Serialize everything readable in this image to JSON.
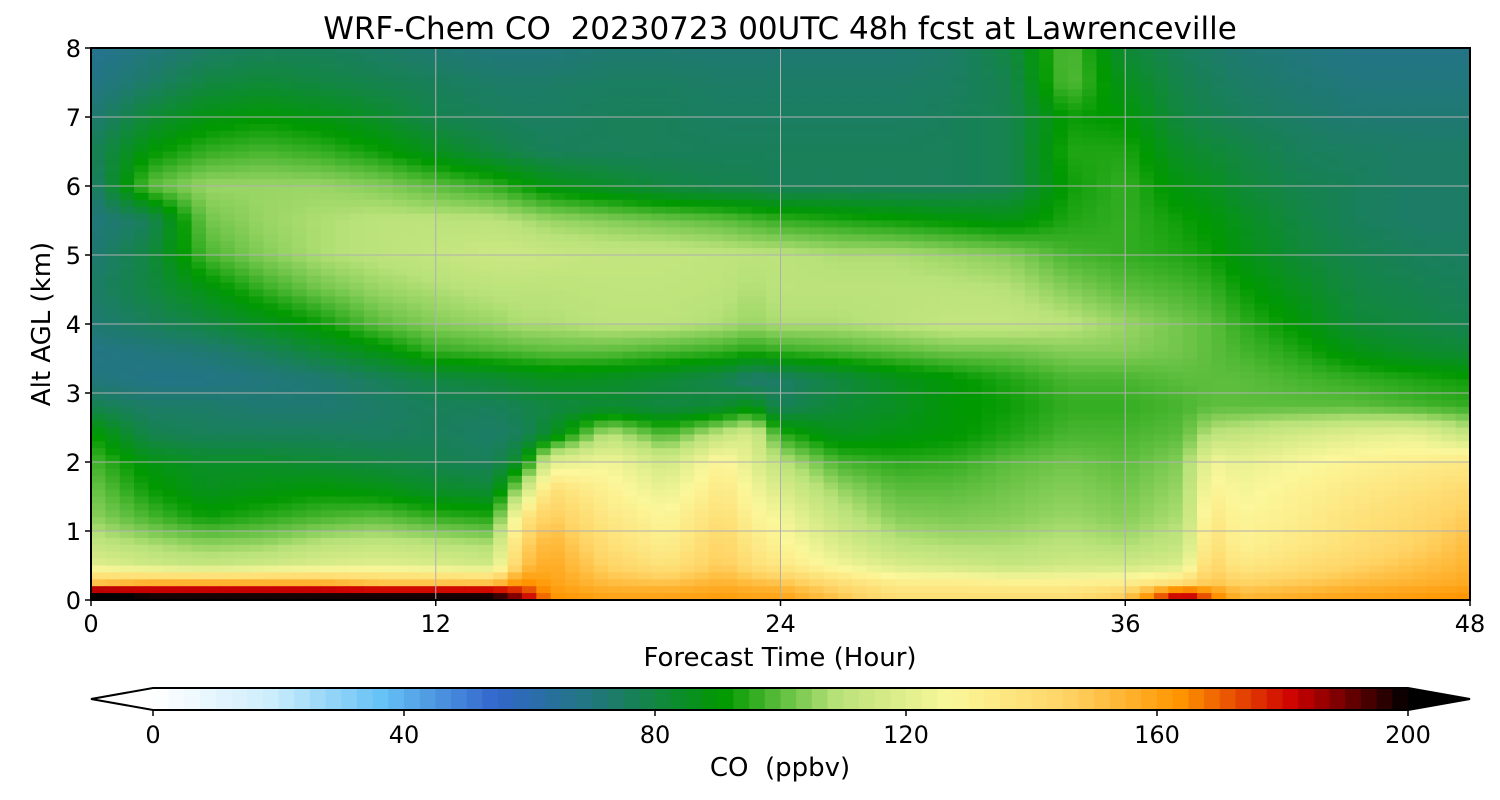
{
  "chart_data": {
    "type": "heatmap",
    "title": "WRF-Chem CO  20230723 00UTC 48h fcst at Lawrenceville",
    "xlabel": "Forecast Time (Hour)",
    "ylabel": "Alt AGL (km)",
    "xlim": [
      0,
      48
    ],
    "ylim": [
      0,
      8
    ],
    "x_ticks": [
      0,
      12,
      24,
      36,
      48
    ],
    "y_ticks": [
      0,
      1,
      2,
      3,
      4,
      5,
      6,
      7,
      8
    ],
    "grid": true,
    "x": [
      0,
      2,
      4,
      6,
      8,
      10,
      12,
      14,
      15,
      16,
      18,
      20,
      22,
      23,
      24,
      26,
      28,
      30,
      32,
      34,
      36,
      38,
      39,
      40,
      42,
      44,
      46,
      48
    ],
    "y": [
      0,
      0.1,
      0.25,
      0.5,
      0.8,
      1.2,
      1.6,
      2.0,
      2.4,
      2.8,
      3.2,
      3.6,
      4.0,
      4.5,
      5.0,
      5.5,
      6.0,
      6.5,
      7.0,
      7.5,
      8.0
    ],
    "z": [
      [
        205,
        200,
        200,
        200,
        200,
        200,
        200,
        200,
        190,
        165,
        160,
        160,
        162,
        160,
        160,
        150,
        140,
        140,
        140,
        140,
        150,
        190,
        170,
        155,
        158,
        160,
        162,
        165
      ],
      [
        200,
        196,
        196,
        196,
        196,
        196,
        196,
        196,
        180,
        162,
        158,
        158,
        160,
        158,
        158,
        148,
        138,
        138,
        138,
        138,
        145,
        180,
        165,
        152,
        155,
        158,
        160,
        162
      ],
      [
        150,
        155,
        155,
        155,
        155,
        150,
        150,
        150,
        165,
        160,
        152,
        150,
        155,
        152,
        150,
        140,
        132,
        132,
        130,
        130,
        132,
        140,
        150,
        145,
        148,
        152,
        155,
        158
      ],
      [
        120,
        115,
        112,
        115,
        118,
        120,
        118,
        115,
        150,
        158,
        145,
        138,
        148,
        140,
        135,
        125,
        118,
        115,
        112,
        115,
        115,
        118,
        145,
        135,
        140,
        145,
        150,
        155
      ],
      [
        112,
        108,
        105,
        106,
        110,
        112,
        110,
        108,
        145,
        155,
        140,
        132,
        145,
        135,
        130,
        118,
        110,
        108,
        108,
        110,
        108,
        112,
        140,
        130,
        135,
        140,
        145,
        152
      ],
      [
        105,
        98,
        92,
        95,
        98,
        100,
        96,
        94,
        135,
        148,
        135,
        128,
        140,
        130,
        125,
        112,
        104,
        103,
        104,
        106,
        104,
        108,
        135,
        128,
        132,
        138,
        142,
        148
      ],
      [
        102,
        92,
        86,
        88,
        90,
        88,
        84,
        82,
        110,
        140,
        130,
        122,
        135,
        125,
        118,
        106,
        100,
        100,
        102,
        104,
        102,
        106,
        130,
        125,
        130,
        134,
        138,
        142
      ],
      [
        98,
        88,
        84,
        84,
        82,
        80,
        78,
        76,
        86,
        120,
        125,
        115,
        130,
        120,
        110,
        98,
        95,
        96,
        100,
        102,
        100,
        104,
        125,
        122,
        126,
        130,
        132,
        135
      ],
      [
        92,
        78,
        76,
        76,
        76,
        75,
        76,
        74,
        76,
        84,
        110,
        98,
        112,
        118,
        95,
        86,
        88,
        90,
        94,
        98,
        98,
        100,
        110,
        112,
        116,
        120,
        122,
        112
      ],
      [
        78,
        74,
        74,
        72,
        72,
        74,
        76,
        76,
        78,
        80,
        82,
        80,
        82,
        88,
        76,
        82,
        85,
        90,
        92,
        96,
        96,
        98,
        100,
        100,
        100,
        100,
        98,
        96
      ],
      [
        70,
        68,
        68,
        70,
        72,
        76,
        80,
        82,
        84,
        86,
        85,
        82,
        78,
        72,
        74,
        80,
        86,
        90,
        94,
        98,
        98,
        100,
        100,
        100,
        98,
        96,
        94,
        92
      ],
      [
        68,
        70,
        72,
        76,
        82,
        88,
        96,
        98,
        99,
        100,
        100,
        98,
        96,
        94,
        96,
        98,
        100,
        102,
        102,
        104,
        104,
        102,
        100,
        98,
        94,
        88,
        84,
        82
      ],
      [
        72,
        76,
        80,
        86,
        92,
        100,
        104,
        106,
        108,
        108,
        110,
        110,
        108,
        106,
        108,
        108,
        110,
        112,
        112,
        110,
        106,
        102,
        100,
        96,
        90,
        82,
        80,
        78
      ],
      [
        74,
        80,
        88,
        96,
        102,
        106,
        108,
        110,
        110,
        110,
        111,
        111,
        110,
        108,
        110,
        110,
        110,
        110,
        109,
        104,
        100,
        98,
        96,
        92,
        86,
        80,
        78,
        76
      ],
      [
        72,
        80,
        98,
        104,
        108,
        110,
        112,
        114,
        114,
        113,
        112,
        112,
        111,
        110,
        110,
        108,
        108,
        106,
        104,
        98,
        96,
        94,
        92,
        88,
        82,
        78,
        76,
        75
      ],
      [
        70,
        76,
        102,
        106,
        108,
        110,
        110,
        110,
        108,
        106,
        104,
        102,
        100,
        98,
        96,
        94,
        92,
        90,
        88,
        94,
        96,
        92,
        90,
        86,
        80,
        76,
        74,
        74
      ],
      [
        72,
        100,
        106,
        106,
        106,
        104,
        100,
        96,
        92,
        88,
        84,
        80,
        78,
        78,
        76,
        76,
        76,
        76,
        78,
        92,
        96,
        88,
        86,
        82,
        78,
        76,
        74,
        74
      ],
      [
        76,
        90,
        96,
        98,
        96,
        92,
        86,
        80,
        78,
        76,
        76,
        76,
        76,
        76,
        76,
        76,
        76,
        76,
        78,
        94,
        94,
        84,
        82,
        80,
        76,
        75,
        74,
        74
      ],
      [
        72,
        82,
        88,
        90,
        88,
        84,
        78,
        76,
        75,
        75,
        76,
        76,
        75,
        75,
        75,
        75,
        75,
        76,
        78,
        92,
        90,
        80,
        78,
        76,
        74,
        72,
        72,
        72
      ],
      [
        68,
        74,
        80,
        82,
        80,
        78,
        76,
        74,
        74,
        74,
        75,
        75,
        74,
        74,
        74,
        74,
        74,
        75,
        78,
        100,
        86,
        78,
        76,
        74,
        72,
        70,
        70,
        70
      ],
      [
        66,
        70,
        74,
        76,
        76,
        74,
        72,
        70,
        70,
        70,
        72,
        72,
        72,
        72,
        72,
        72,
        72,
        74,
        80,
        100,
        82,
        76,
        74,
        72,
        70,
        68,
        68,
        68
      ]
    ],
    "colorbar": {
      "label": "CO  (ppbv)",
      "min": 0,
      "max": 200,
      "ticks": [
        0,
        40,
        80,
        120,
        160,
        200
      ],
      "extend": "both",
      "orientation": "horizontal",
      "placement": "bottom",
      "colors": [
        "#ffffff",
        "#cfeefc",
        "#66c2f5",
        "#3366cc",
        "#1e7a6e",
        "#009900",
        "#b9e27a",
        "#fbf79a",
        "#ffd465",
        "#ff9500",
        "#cc0000",
        "#000000"
      ]
    }
  }
}
